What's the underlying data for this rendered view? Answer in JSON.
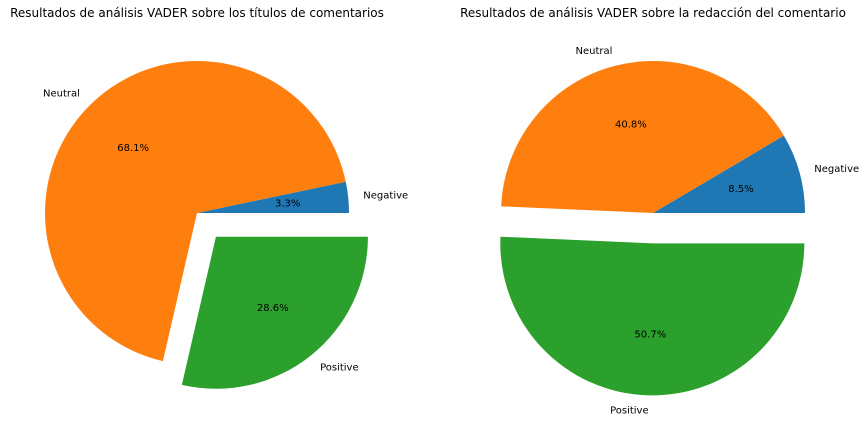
{
  "chart_data": [
    {
      "type": "pie",
      "title": "Resultados de análisis VADER sobre los títulos de comentarios",
      "categories": [
        "Negative",
        "Neutral",
        "Positive"
      ],
      "values": [
        3.3,
        68.1,
        28.6
      ],
      "value_labels": [
        "3.3%",
        "68.1%",
        "28.6%"
      ],
      "colors": [
        "#1f77b4",
        "#ff7f0e",
        "#2ca02c"
      ],
      "exploded": [
        false,
        false,
        true
      ]
    },
    {
      "type": "pie",
      "title": "Resultados de análisis VADER sobre la redacción del comentario",
      "categories": [
        "Negative",
        "Neutral",
        "Positive"
      ],
      "values": [
        8.5,
        40.8,
        50.7
      ],
      "value_labels": [
        "8.5%",
        "40.8%",
        "50.7%"
      ],
      "colors": [
        "#1f77b4",
        "#ff7f0e",
        "#2ca02c"
      ],
      "exploded": [
        false,
        false,
        true
      ]
    }
  ]
}
